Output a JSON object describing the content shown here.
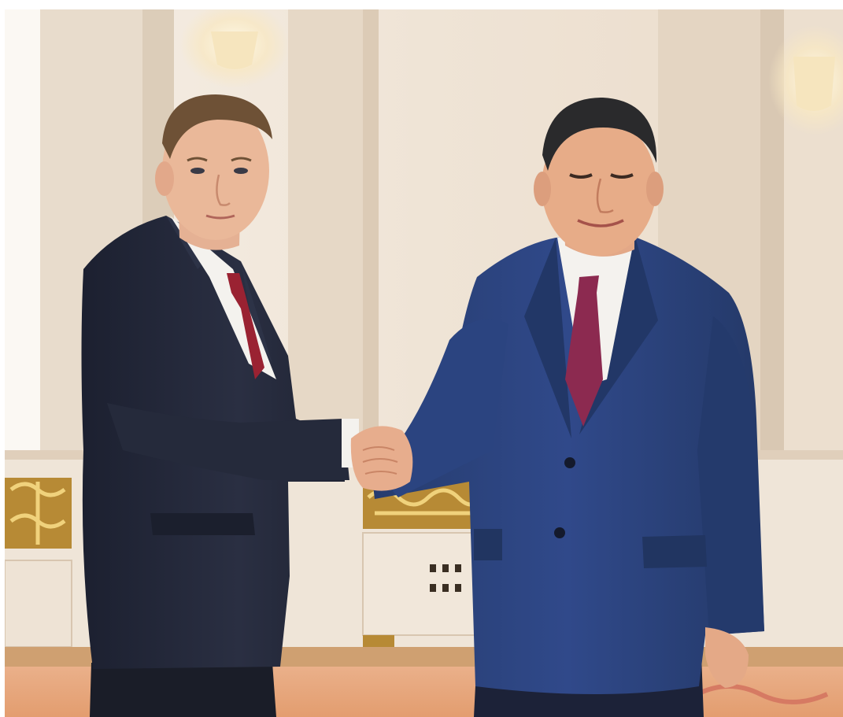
{
  "photo": {
    "subject": "two-men-shaking-hands",
    "colors": {
      "wall": "#eee3d6",
      "pillar": "#e2d2bf",
      "gold_trim": "#c79a3c",
      "carpet": "#e9a877",
      "left_suit": "#23283a",
      "right_suit": "#2c4379",
      "left_tie": "#9a2232",
      "right_tie": "#8c2a50",
      "shirt": "#f4f2ee",
      "skin": "#e6b393"
    }
  }
}
